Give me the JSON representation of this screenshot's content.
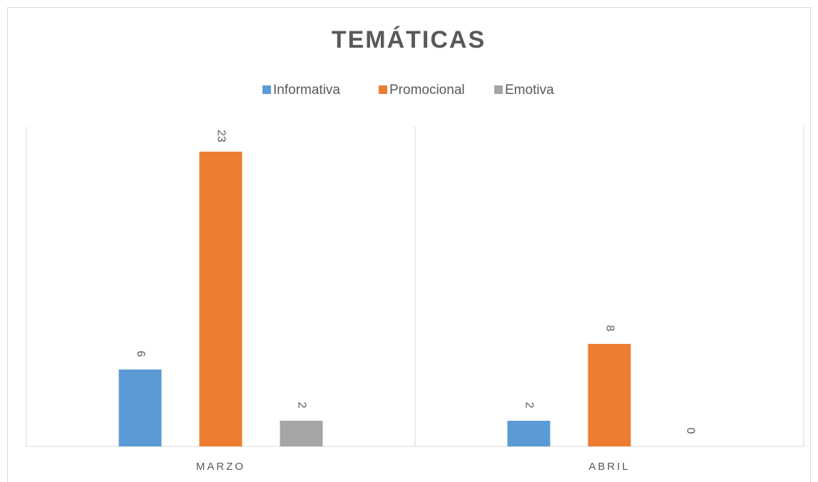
{
  "chart_data": {
    "type": "bar",
    "title": "TEMÁTICAS",
    "categories": [
      "MARZO",
      "ABRIL"
    ],
    "series": [
      {
        "name": "Informativa",
        "color": "#5b9bd5",
        "values": [
          6,
          2
        ]
      },
      {
        "name": "Promocional",
        "color": "#ed7d31",
        "values": [
          23,
          8
        ]
      },
      {
        "name": "Emotiva",
        "color": "#a5a5a5",
        "values": [
          2,
          0
        ]
      }
    ],
    "legend": "top"
  }
}
